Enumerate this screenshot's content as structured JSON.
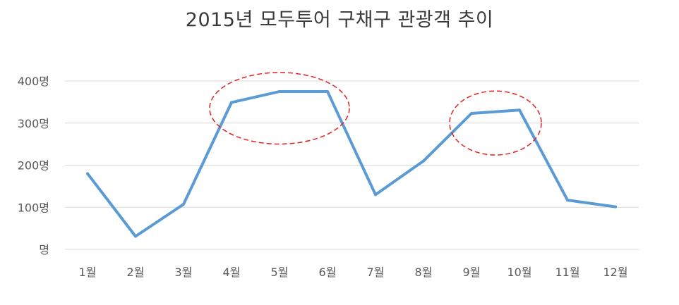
{
  "chart_data": {
    "type": "line",
    "title": "2015년 모두투어 구채구 관광객 추이",
    "xlabel": "",
    "ylabel": "",
    "categories": [
      "1월",
      "2월",
      "3월",
      "4월",
      "5월",
      "6월",
      "7월",
      "8월",
      "9월",
      "10월",
      "11월",
      "12월"
    ],
    "series": [
      {
        "values": [
          180,
          31,
          107,
          349,
          375,
          375,
          130,
          210,
          323,
          331,
          117,
          101
        ]
      }
    ],
    "ylim": [
      0,
      400
    ],
    "yticks": [
      0,
      100,
      200,
      300,
      400
    ],
    "ytick_labels": [
      "명",
      "100명",
      "200명",
      "300명",
      "400명"
    ],
    "grid": true,
    "legend": "none",
    "colors": {
      "line": "#5b9bd5",
      "grid": "#d9d9d9",
      "highlight": "#e02020"
    },
    "highlights": [
      {
        "categories": [
          "4월",
          "6월"
        ],
        "shape": "dashed-ellipse"
      },
      {
        "categories": [
          "9월",
          "10월"
        ],
        "shape": "dashed-ellipse"
      }
    ]
  }
}
